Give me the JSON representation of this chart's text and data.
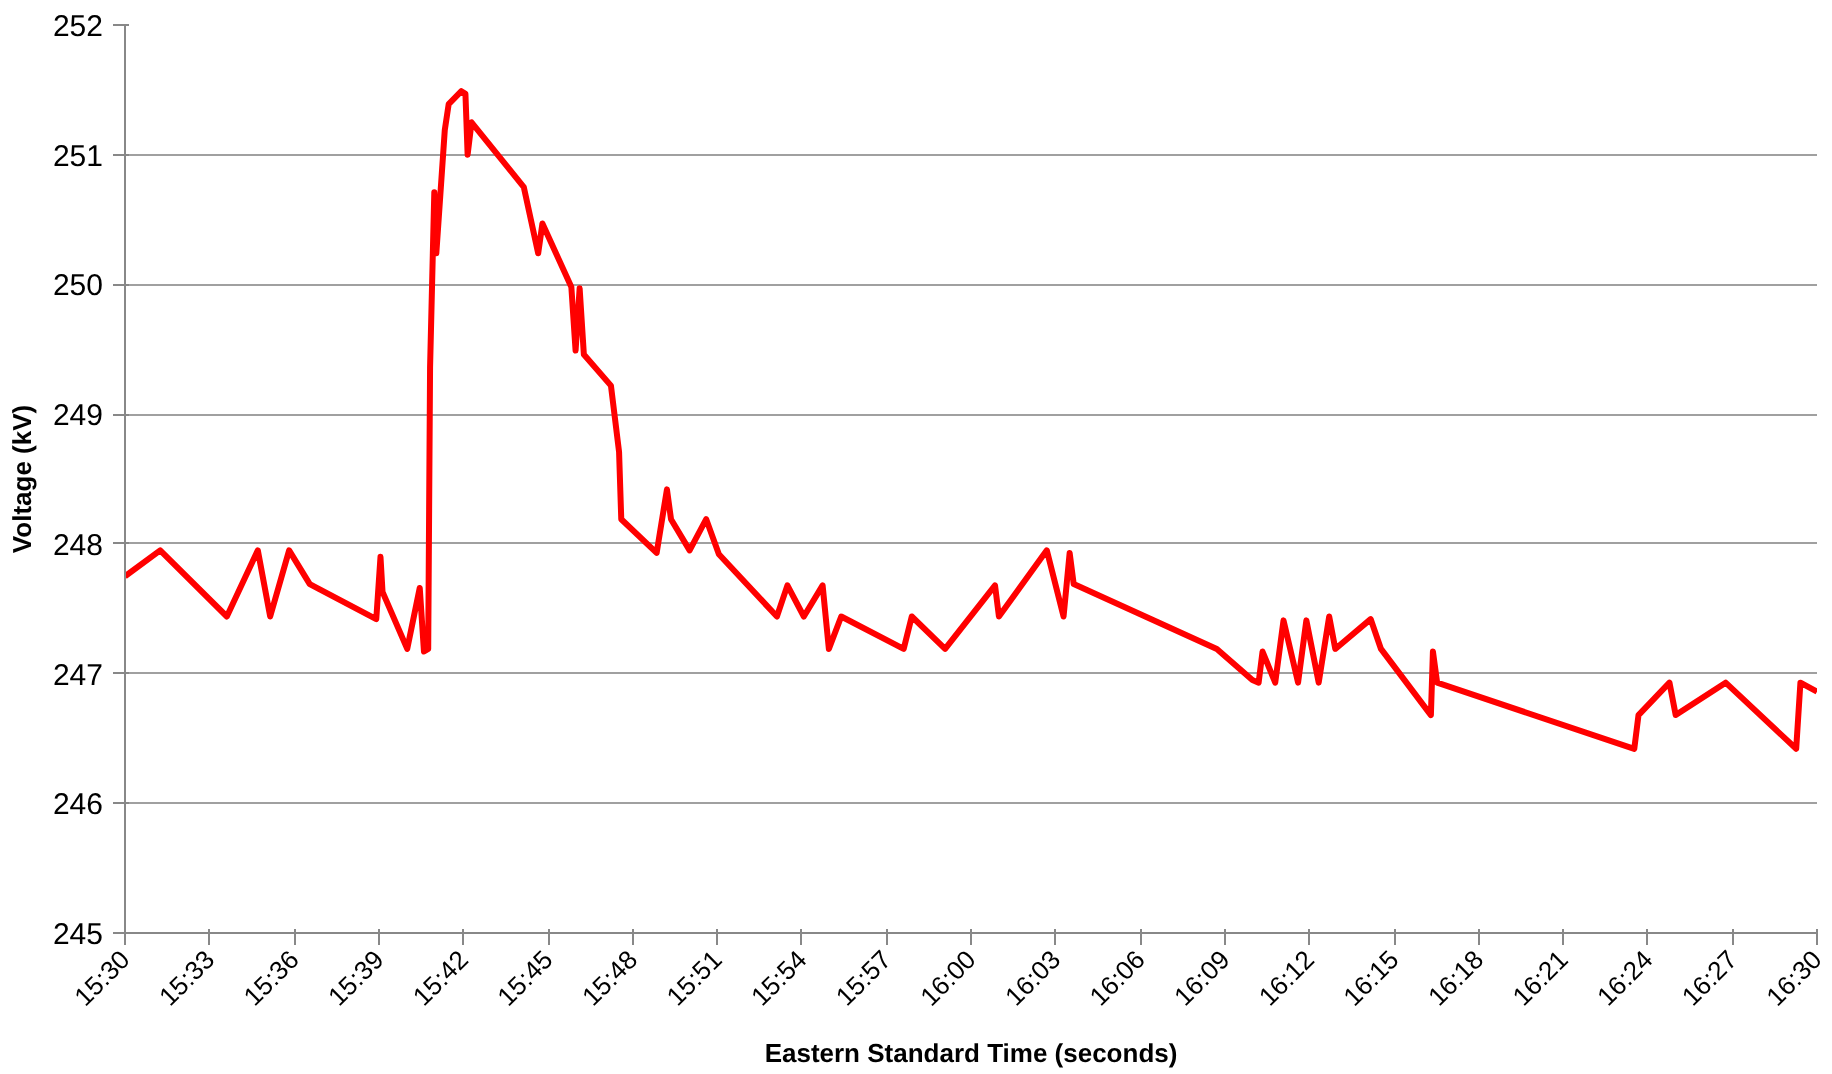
{
  "chart_data": {
    "type": "line",
    "xlabel": "Eastern Standard Time (seconds)",
    "ylabel": "Voltage (kV)",
    "xlim": [
      15.5,
      16.5
    ],
    "ylim": [
      245,
      252
    ],
    "xticks": [
      {
        "value": 15.5,
        "label": "15:30"
      },
      {
        "value": 15.55,
        "label": "15:33"
      },
      {
        "value": 15.6,
        "label": "15:36"
      },
      {
        "value": 15.65,
        "label": "15:39"
      },
      {
        "value": 15.7,
        "label": "15:42"
      },
      {
        "value": 15.75,
        "label": "15:45"
      },
      {
        "value": 15.8,
        "label": "15:48"
      },
      {
        "value": 15.85,
        "label": "15:51"
      },
      {
        "value": 15.9,
        "label": "15:54"
      },
      {
        "value": 15.95,
        "label": "15:57"
      },
      {
        "value": 16.0,
        "label": "16:00"
      },
      {
        "value": 16.05,
        "label": "16:03"
      },
      {
        "value": 16.1,
        "label": "16:06"
      },
      {
        "value": 16.15,
        "label": "16:09"
      },
      {
        "value": 16.2,
        "label": "16:12"
      },
      {
        "value": 16.25,
        "label": "16:15"
      },
      {
        "value": 16.3,
        "label": "16:18"
      },
      {
        "value": 16.35,
        "label": "16:21"
      },
      {
        "value": 16.4,
        "label": "16:24"
      },
      {
        "value": 16.45,
        "label": "16:27"
      },
      {
        "value": 16.5,
        "label": "16:30"
      }
    ],
    "yticks": [
      245,
      246,
      247,
      248,
      249,
      250,
      251,
      252
    ],
    "grid": "y",
    "marker": "none",
    "line_style": "solid",
    "series": [
      {
        "color": "#ff0000",
        "x": [
          15.5,
          15.5208,
          15.5602,
          15.5785,
          15.5858,
          15.597,
          15.6092,
          15.6485,
          15.651,
          15.6522,
          15.6668,
          15.6742,
          15.6767,
          15.6792,
          15.6803,
          15.6828,
          15.684,
          15.689,
          15.6913,
          15.6988,
          15.7012,
          15.7025,
          15.7048,
          15.7357,
          15.7442,
          15.7467,
          15.7638,
          15.7663,
          15.7687,
          15.7712,
          15.7872,
          15.792,
          15.7933,
          15.8142,
          15.8203,
          15.8227,
          15.8337,
          15.8435,
          15.851,
          15.8853,
          15.8915,
          15.9012,
          15.9123,
          15.916,
          15.9233,
          15.9602,
          15.965,
          15.9847,
          16.0142,
          16.0165,
          16.0448,
          16.0547,
          16.0583,
          16.0607,
          16.1453,
          16.1663,
          16.17,
          16.1723,
          16.1798,
          16.1847,
          16.1933,
          16.1982,
          16.2055,
          16.2117,
          16.2153,
          16.2362,
          16.2423,
          16.2718,
          16.273,
          16.2755,
          16.392,
          16.3945,
          16.4128,
          16.4165,
          16.446,
          16.4877,
          16.4902,
          16.5
        ],
        "values": [
          247.75,
          247.95,
          247.44,
          247.95,
          247.44,
          247.95,
          247.69,
          247.42,
          247.9,
          247.63,
          247.19,
          247.66,
          247.17,
          247.19,
          249.36,
          250.71,
          250.24,
          251.19,
          251.39,
          251.49,
          251.47,
          251.0,
          251.25,
          250.75,
          250.24,
          250.47,
          249.98,
          249.49,
          249.97,
          249.46,
          249.22,
          248.71,
          248.19,
          247.93,
          248.42,
          248.19,
          247.95,
          248.19,
          247.92,
          247.44,
          247.68,
          247.44,
          247.68,
          247.19,
          247.44,
          247.19,
          247.44,
          247.19,
          247.68,
          247.44,
          247.95,
          247.44,
          247.93,
          247.69,
          247.19,
          246.95,
          246.93,
          247.17,
          246.93,
          247.41,
          246.93,
          247.41,
          246.93,
          247.44,
          247.19,
          247.42,
          247.19,
          246.68,
          247.17,
          246.93,
          246.42,
          246.68,
          246.93,
          246.68,
          246.93,
          246.42,
          246.93,
          246.86
        ]
      }
    ]
  }
}
